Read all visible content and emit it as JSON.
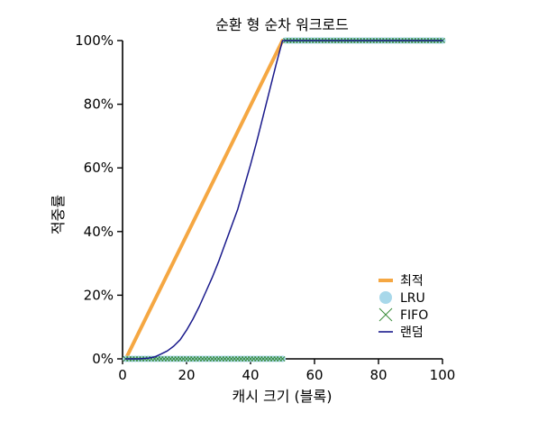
{
  "chart_data": {
    "type": "line",
    "title": "순환 형 순차 워크로드",
    "xlabel": "캐시 크기 (블록)",
    "ylabel": "적중률",
    "xlim": [
      0,
      100
    ],
    "ylim": [
      0,
      100
    ],
    "xticks": [
      "0",
      "20",
      "40",
      "60",
      "80",
      "100"
    ],
    "yticks": [
      "0%",
      "20%",
      "40%",
      "60%",
      "80%",
      "100%"
    ],
    "legend_position": "bottom-right",
    "grid": false,
    "series": [
      {
        "name": "최적",
        "style": "line",
        "color": "#F5A742",
        "x": [
          1,
          50,
          100
        ],
        "y": [
          0,
          100,
          100
        ]
      },
      {
        "name": "LRU",
        "style": "markers-circle",
        "color": "#A8D8EA",
        "x": [
          1,
          2,
          3,
          4,
          5,
          6,
          7,
          8,
          9,
          10,
          11,
          12,
          13,
          14,
          15,
          16,
          17,
          18,
          19,
          20,
          21,
          22,
          23,
          24,
          25,
          26,
          27,
          28,
          29,
          30,
          31,
          32,
          33,
          34,
          35,
          36,
          37,
          38,
          39,
          40,
          41,
          42,
          43,
          44,
          45,
          46,
          47,
          48,
          49,
          50,
          51,
          52,
          53,
          54,
          55,
          56,
          57,
          58,
          59,
          60,
          61,
          62,
          63,
          64,
          65,
          66,
          67,
          68,
          69,
          70,
          71,
          72,
          73,
          74,
          75,
          76,
          77,
          78,
          79,
          80,
          81,
          82,
          83,
          84,
          85,
          86,
          87,
          88,
          89,
          90,
          91,
          92,
          93,
          94,
          95,
          96,
          97,
          98,
          99,
          100
        ],
        "y": [
          0,
          0,
          0,
          0,
          0,
          0,
          0,
          0,
          0,
          0,
          0,
          0,
          0,
          0,
          0,
          0,
          0,
          0,
          0,
          0,
          0,
          0,
          0,
          0,
          0,
          0,
          0,
          0,
          0,
          0,
          0,
          0,
          0,
          0,
          0,
          0,
          0,
          0,
          0,
          0,
          0,
          0,
          0,
          0,
          0,
          0,
          0,
          0,
          0,
          0,
          100,
          100,
          100,
          100,
          100,
          100,
          100,
          100,
          100,
          100,
          100,
          100,
          100,
          100,
          100,
          100,
          100,
          100,
          100,
          100,
          100,
          100,
          100,
          100,
          100,
          100,
          100,
          100,
          100,
          100,
          100,
          100,
          100,
          100,
          100,
          100,
          100,
          100,
          100,
          100,
          100,
          100,
          100,
          100,
          100,
          100,
          100,
          100,
          100,
          100
        ]
      },
      {
        "name": "FIFO",
        "style": "markers-x",
        "color": "#3A8C3A",
        "x": [
          1,
          2,
          3,
          4,
          5,
          6,
          7,
          8,
          9,
          10,
          11,
          12,
          13,
          14,
          15,
          16,
          17,
          18,
          19,
          20,
          21,
          22,
          23,
          24,
          25,
          26,
          27,
          28,
          29,
          30,
          31,
          32,
          33,
          34,
          35,
          36,
          37,
          38,
          39,
          40,
          41,
          42,
          43,
          44,
          45,
          46,
          47,
          48,
          49,
          50,
          51,
          52,
          53,
          54,
          55,
          56,
          57,
          58,
          59,
          60,
          61,
          62,
          63,
          64,
          65,
          66,
          67,
          68,
          69,
          70,
          71,
          72,
          73,
          74,
          75,
          76,
          77,
          78,
          79,
          80,
          81,
          82,
          83,
          84,
          85,
          86,
          87,
          88,
          89,
          90,
          91,
          92,
          93,
          94,
          95,
          96,
          97,
          98,
          99,
          100
        ],
        "y": [
          0,
          0,
          0,
          0,
          0,
          0,
          0,
          0,
          0,
          0,
          0,
          0,
          0,
          0,
          0,
          0,
          0,
          0,
          0,
          0,
          0,
          0,
          0,
          0,
          0,
          0,
          0,
          0,
          0,
          0,
          0,
          0,
          0,
          0,
          0,
          0,
          0,
          0,
          0,
          0,
          0,
          0,
          0,
          0,
          0,
          0,
          0,
          0,
          0,
          0,
          100,
          100,
          100,
          100,
          100,
          100,
          100,
          100,
          100,
          100,
          100,
          100,
          100,
          100,
          100,
          100,
          100,
          100,
          100,
          100,
          100,
          100,
          100,
          100,
          100,
          100,
          100,
          100,
          100,
          100,
          100,
          100,
          100,
          100,
          100,
          100,
          100,
          100,
          100,
          100,
          100,
          100,
          100,
          100,
          100,
          100,
          100,
          100,
          100,
          100
        ]
      },
      {
        "name": "랜덤",
        "style": "line",
        "color": "#1A1A8C",
        "x": [
          1,
          5,
          8,
          10,
          12,
          14,
          16,
          18,
          20,
          22,
          24,
          26,
          28,
          30,
          32,
          34,
          36,
          38,
          40,
          42,
          44,
          46,
          48,
          50,
          100
        ],
        "y": [
          0,
          0,
          0.2,
          0.6,
          1.5,
          2.5,
          4,
          6,
          9,
          12.5,
          16.5,
          21,
          25.5,
          30.5,
          36,
          41.5,
          47,
          54,
          61,
          68.5,
          76.5,
          84.5,
          92.5,
          100,
          100
        ]
      }
    ]
  }
}
